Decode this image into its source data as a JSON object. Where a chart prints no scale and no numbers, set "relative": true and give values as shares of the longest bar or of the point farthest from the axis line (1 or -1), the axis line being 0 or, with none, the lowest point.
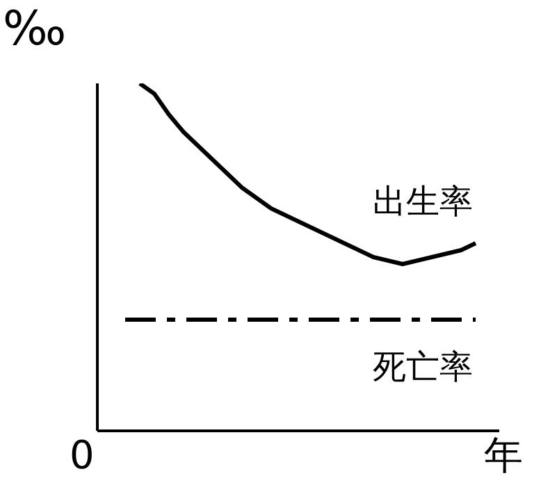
{
  "chart_data": {
    "type": "line",
    "relative": true,
    "ylabel": "‰",
    "xlabel": "年",
    "annotations": [
      "0"
    ],
    "legend": false,
    "categories": [
      null,
      null,
      null,
      null,
      null,
      null,
      null,
      null,
      null,
      null,
      null,
      null,
      null,
      null,
      null,
      null,
      null,
      null,
      null,
      null,
      null,
      null,
      null,
      null,
      null
    ],
    "series": [
      {
        "name": "出生率",
        "color": "#000000",
        "line_style": "solid",
        "values": [
          null,
          1.0,
          0.97,
          0.91,
          0.86,
          0.82,
          0.78,
          0.74,
          0.7,
          0.67,
          0.64,
          0.62,
          0.6,
          0.58,
          0.56,
          0.54,
          0.52,
          0.5,
          0.49,
          0.48,
          0.49,
          0.5,
          0.51,
          0.52,
          0.54
        ]
      },
      {
        "name": "死亡率",
        "color": "#000000",
        "line_style": "dashed",
        "values": [
          0.32,
          0.32,
          0.32,
          0.32,
          0.32,
          0.32,
          0.32,
          0.32,
          0.32,
          0.32,
          0.32,
          0.32,
          0.32,
          0.32,
          0.32,
          0.32,
          0.32,
          0.32,
          0.32,
          0.32,
          0.32,
          0.32,
          0.32,
          0.32,
          0.32
        ]
      }
    ]
  }
}
